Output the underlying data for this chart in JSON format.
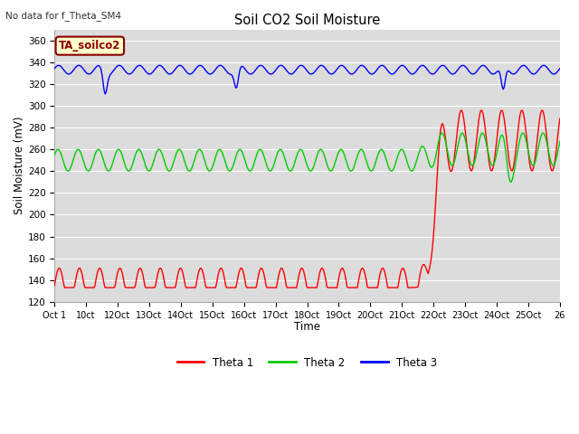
{
  "title": "Soil CO2 Soil Moisture",
  "subtitle": "No data for f_Theta_SM4",
  "ylabel": "Soil Moisture (mV)",
  "xlabel": "Time",
  "ylim": [
    120,
    370
  ],
  "bg_color": "#dcdcdc",
  "legend_label": "TA_soilco2",
  "legend_box_color": "#ffffcc",
  "legend_box_border": "#8b0000",
  "line_colors": [
    "#ff0000",
    "#00cc00",
    "#0000ff"
  ],
  "line_labels": [
    "Theta 1",
    "Theta 2",
    "Theta 3"
  ],
  "xtick_labels": [
    "Oct 1",
    "10ct",
    "12Oct",
    "13Oct",
    "14Oct",
    "15Oct",
    "16Oct",
    "17Oct",
    "18Oct",
    "19Oct",
    "20Oct",
    "21Oct",
    "22Oct",
    "23Oct",
    "24Oct",
    "25Oct",
    "26"
  ],
  "rise_day": 18.5,
  "n_points": 500
}
